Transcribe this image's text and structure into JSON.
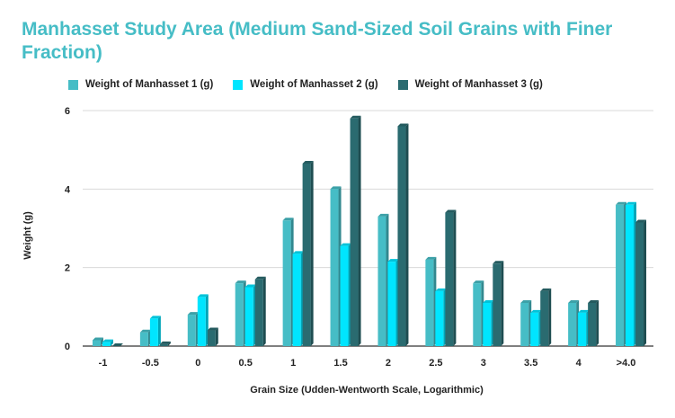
{
  "chart_data": {
    "type": "bar",
    "title": "Manhasset Study Area (Medium Sand-Sized Soil Grains with Finer Fraction)",
    "xlabel": "Grain Size (Udden-Wentworth Scale, Logarithmic)",
    "ylabel": "Weight (g)",
    "ylim": [
      0,
      6
    ],
    "yticks": [
      0,
      2,
      4,
      6
    ],
    "grid": true,
    "legend_position": "top",
    "categories": [
      "-1",
      "-0.5",
      "0",
      "0.5",
      "1",
      "1.5",
      "2",
      "2.5",
      "3",
      "3.5",
      "4",
      ">4.0"
    ],
    "series": [
      {
        "name": "Weight of Manhasset 1 (g)",
        "color": "#46bdc6",
        "values": [
          0.15,
          0.35,
          0.8,
          1.6,
          3.2,
          4.0,
          3.3,
          2.2,
          1.6,
          1.1,
          1.1,
          3.6
        ]
      },
      {
        "name": "Weight of Manhasset 2 (g)",
        "color": "#00e5ff",
        "values": [
          0.1,
          0.7,
          1.25,
          1.5,
          2.35,
          2.55,
          2.15,
          1.4,
          1.1,
          0.85,
          0.85,
          3.6
        ]
      },
      {
        "name": "Weight of Manhasset 3 (g)",
        "color": "#2a6b70",
        "values": [
          0.0,
          0.05,
          0.4,
          1.7,
          4.65,
          5.8,
          5.6,
          3.4,
          2.1,
          1.4,
          1.1,
          3.15
        ]
      }
    ]
  }
}
